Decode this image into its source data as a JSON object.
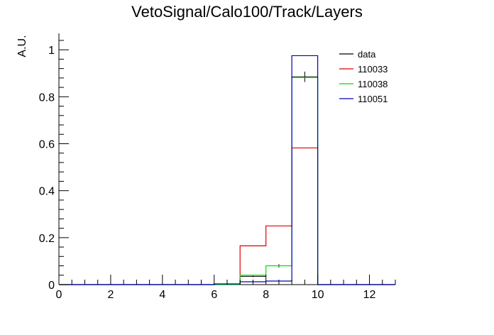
{
  "chart_data": {
    "type": "histogram",
    "title": "VetoSignal/Calo100/Track/Layers",
    "xlabel": "",
    "ylabel": "A.U.",
    "xlim": [
      0,
      13
    ],
    "ylim": [
      0,
      1.07
    ],
    "x_ticks": [
      "0",
      "2",
      "4",
      "6",
      "8",
      "10",
      "12"
    ],
    "y_ticks": [
      "0",
      "0.2",
      "0.4",
      "0.6",
      "0.8",
      "1"
    ],
    "bin_edges": [
      0,
      1,
      2,
      3,
      4,
      5,
      6,
      7,
      8,
      9,
      10,
      11,
      12,
      13
    ],
    "legend_position": "top-right",
    "series": [
      {
        "name": "data",
        "color": "#000000",
        "style": "points",
        "points": [
          {
            "x": 7.5,
            "y": 0.035,
            "err": 0.003
          },
          {
            "x": 8.5,
            "y": 0.08,
            "err": 0.007
          },
          {
            "x": 9.5,
            "y": 0.885,
            "err": 0.022
          }
        ]
      },
      {
        "name": "110033",
        "color": "#e00000",
        "style": "step",
        "values": [
          0,
          0,
          0,
          0,
          0,
          0,
          0,
          0.165,
          0.25,
          0.582,
          0,
          0,
          0
        ]
      },
      {
        "name": "110038",
        "color": "#00dd00",
        "style": "step",
        "values": [
          0,
          0,
          0,
          0,
          0,
          0,
          0,
          0.04,
          0.08,
          0.882,
          0,
          0,
          0
        ]
      },
      {
        "name": "110051",
        "color": "#0000c0",
        "style": "step",
        "values": [
          0,
          0,
          0,
          0,
          0,
          0,
          0.003,
          0.012,
          0.015,
          0.975,
          0,
          0,
          0
        ]
      }
    ]
  }
}
